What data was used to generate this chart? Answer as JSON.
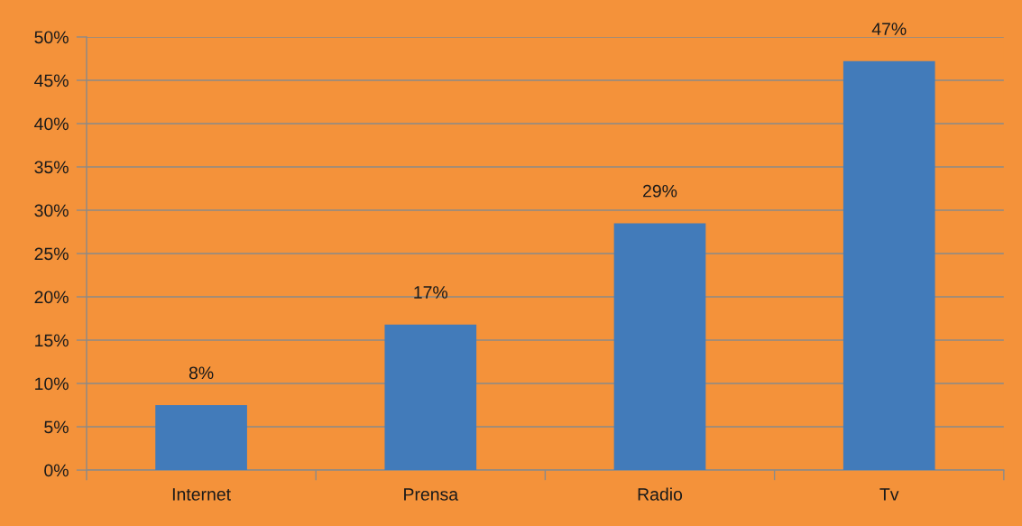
{
  "chart_data": {
    "type": "bar",
    "categories": [
      "Internet",
      "Prensa",
      "Radio",
      "Tv"
    ],
    "values": [
      7.5,
      16.8,
      28.5,
      47.2
    ],
    "color": "#427bba",
    "value_labels": [
      "8%",
      "17%",
      "29%",
      "47%"
    ],
    "ylim": [
      0,
      50
    ],
    "yticks": [
      {
        "value": 0,
        "label": "0%"
      },
      {
        "value": 5,
        "label": "5%"
      },
      {
        "value": 10,
        "label": "10%"
      },
      {
        "value": 15,
        "label": "15%"
      },
      {
        "value": 20,
        "label": "20%"
      },
      {
        "value": 25,
        "label": "25%"
      },
      {
        "value": 30,
        "label": "30%"
      },
      {
        "value": 35,
        "label": "35%"
      },
      {
        "value": 40,
        "label": "40%"
      },
      {
        "value": 45,
        "label": "45%"
      },
      {
        "value": 50,
        "label": "50%"
      }
    ],
    "grid": "y"
  }
}
